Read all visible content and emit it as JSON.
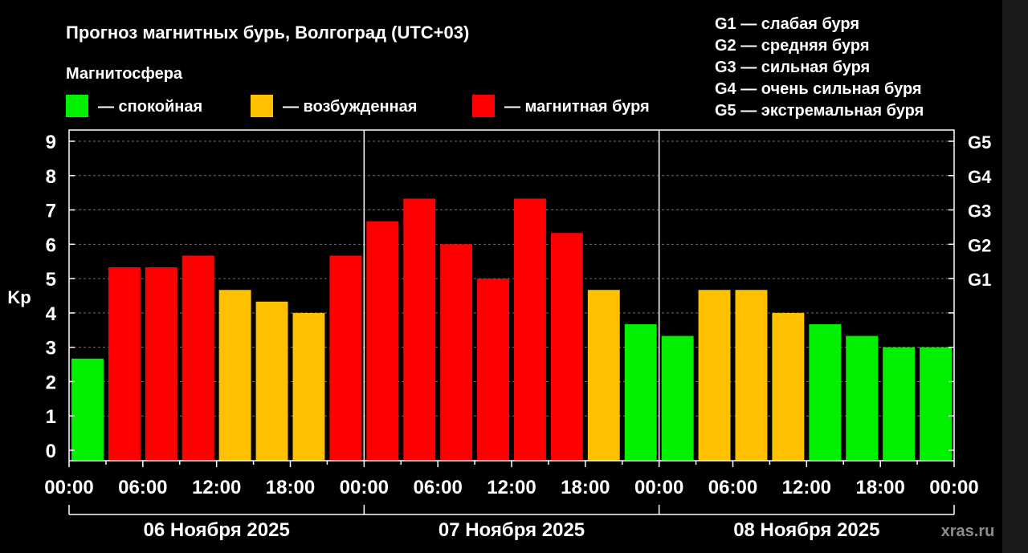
{
  "chart_data": {
    "type": "bar",
    "title": "Прогноз магнитных бурь, Волгоград (UTC+03)",
    "ylabel": "Kp",
    "ylim": [
      0,
      9
    ],
    "yticks": [
      "0",
      "1",
      "2",
      "3",
      "4",
      "5",
      "6",
      "7",
      "8",
      "9"
    ],
    "grid": true,
    "legend": {
      "title": "Магнитосфера",
      "placement": "top-left",
      "items": [
        {
          "label": "— спокойная",
          "color": "#00f000"
        },
        {
          "label": "— возбужденная",
          "color": "#ffc000"
        },
        {
          "label": "— магнитная буря",
          "color": "#ff0000"
        }
      ]
    },
    "storm_scale": {
      "placement": "top-right",
      "items": [
        "G1 — слабая буря",
        "G2 — средняя буря",
        "G3 — сильная буря",
        "G4 — очень сильная буря",
        "G5 — экстремальная буря"
      ]
    },
    "g_levels": [
      {
        "label": "G1",
        "kp": 5
      },
      {
        "label": "G2",
        "kp": 6
      },
      {
        "label": "G3",
        "kp": 7
      },
      {
        "label": "G4",
        "kp": 8
      },
      {
        "label": "G5",
        "kp": 9
      }
    ],
    "x_tick_labels": [
      "00:00",
      "06:00",
      "12:00",
      "18:00",
      "00:00",
      "06:00",
      "12:00",
      "18:00",
      "00:00",
      "06:00",
      "12:00",
      "18:00",
      "00:00"
    ],
    "days": [
      "06 Ноября 2025",
      "07 Ноября 2025",
      "08 Ноября 2025"
    ],
    "series": [
      {
        "values": [
          2.67,
          5.33,
          5.33,
          5.67,
          4.67,
          4.33,
          4.0,
          5.67,
          6.67,
          7.33,
          6.0,
          5.0,
          7.33,
          6.33,
          4.67,
          3.67,
          3.33,
          4.67,
          4.67,
          4.0,
          3.67,
          3.33,
          3.0,
          3.0
        ],
        "levels": [
          "quiet",
          "storm",
          "storm",
          "storm",
          "active",
          "active",
          "active",
          "storm",
          "storm",
          "storm",
          "storm",
          "storm",
          "storm",
          "storm",
          "active",
          "quiet",
          "quiet",
          "active",
          "active",
          "active",
          "quiet",
          "quiet",
          "quiet",
          "quiet"
        ]
      }
    ],
    "level_colors": {
      "quiet": "#00f000",
      "active": "#ffc000",
      "storm": "#ff0000"
    }
  },
  "watermark": "xras.ru"
}
